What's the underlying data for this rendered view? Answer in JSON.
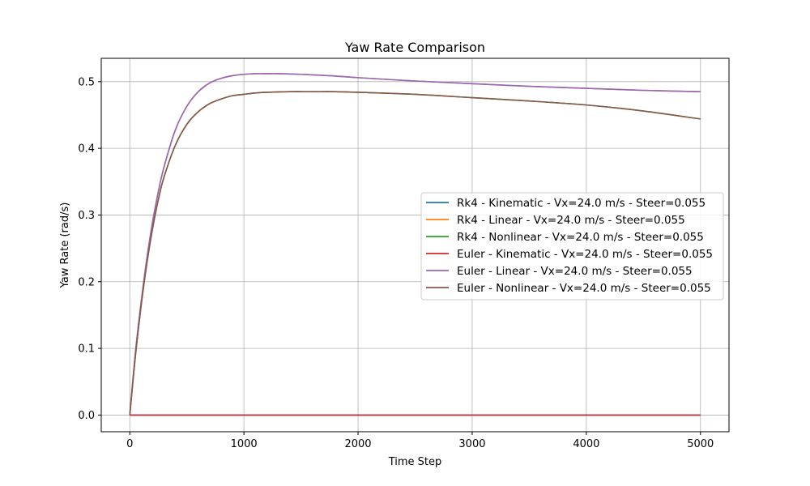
{
  "chart_data": {
    "type": "line",
    "title": "Yaw Rate Comparison",
    "xlabel": "Time Step",
    "ylabel": "Yaw Rate (rad/s)",
    "xlim": [
      -250,
      5250
    ],
    "ylim": [
      -0.025,
      0.535
    ],
    "xticks": [
      0,
      1000,
      2000,
      3000,
      4000,
      5000
    ],
    "yticks": [
      0.0,
      0.1,
      0.2,
      0.3,
      0.4,
      0.5
    ],
    "xtick_labels": [
      "0",
      "1000",
      "2000",
      "3000",
      "4000",
      "5000"
    ],
    "ytick_labels": [
      "0.0",
      "0.1",
      "0.2",
      "0.3",
      "0.4",
      "0.5"
    ],
    "grid": true,
    "legend_position": "center-right",
    "series": [
      {
        "name": "Rk4 - Kinematic - Vx=24.0 m/s - Steer=0.055",
        "color": "#1f77b4",
        "x": [
          0,
          5000
        ],
        "y": [
          0.0,
          0.0
        ]
      },
      {
        "name": "Rk4 - Linear - Vx=24.0 m/s - Steer=0.055",
        "color": "#ff7f0e",
        "x": [
          0,
          50,
          100,
          150,
          200,
          250,
          300,
          400,
          500,
          600,
          700,
          800,
          900,
          1000,
          1100,
          1200,
          1300,
          1500,
          1750,
          2000,
          2500,
          3000,
          3500,
          4000,
          4500,
          5000
        ],
        "y": [
          0.0,
          0.095,
          0.17,
          0.235,
          0.29,
          0.335,
          0.372,
          0.428,
          0.463,
          0.485,
          0.498,
          0.505,
          0.509,
          0.511,
          0.512,
          0.512,
          0.512,
          0.511,
          0.509,
          0.506,
          0.501,
          0.497,
          0.493,
          0.49,
          0.487,
          0.485
        ]
      },
      {
        "name": "Rk4 - Nonlinear - Vx=24.0 m/s - Steer=0.055",
        "color": "#2ca02c",
        "x": [
          0,
          50,
          100,
          150,
          200,
          250,
          300,
          400,
          500,
          600,
          700,
          800,
          900,
          1000,
          1100,
          1200,
          1400,
          1600,
          1800,
          2000,
          2500,
          3000,
          3500,
          4000,
          4500,
          5000
        ],
        "y": [
          0.0,
          0.09,
          0.165,
          0.228,
          0.28,
          0.323,
          0.357,
          0.405,
          0.436,
          0.455,
          0.467,
          0.474,
          0.479,
          0.481,
          0.483,
          0.484,
          0.485,
          0.485,
          0.485,
          0.484,
          0.481,
          0.476,
          0.471,
          0.465,
          0.456,
          0.444
        ]
      },
      {
        "name": "Euler - Kinematic - Vx=24.0 m/s - Steer=0.055",
        "color": "#d62728",
        "x": [
          0,
          5000
        ],
        "y": [
          0.0,
          0.0
        ]
      },
      {
        "name": "Euler - Linear - Vx=24.0 m/s - Steer=0.055",
        "color": "#9467bd",
        "x": [
          0,
          50,
          100,
          150,
          200,
          250,
          300,
          400,
          500,
          600,
          700,
          800,
          900,
          1000,
          1100,
          1200,
          1300,
          1500,
          1750,
          2000,
          2500,
          3000,
          3500,
          4000,
          4500,
          5000
        ],
        "y": [
          0.0,
          0.095,
          0.17,
          0.235,
          0.29,
          0.335,
          0.372,
          0.428,
          0.463,
          0.485,
          0.498,
          0.505,
          0.509,
          0.511,
          0.512,
          0.512,
          0.512,
          0.511,
          0.509,
          0.506,
          0.501,
          0.497,
          0.493,
          0.49,
          0.487,
          0.485
        ]
      },
      {
        "name": "Euler - Nonlinear - Vx=24.0 m/s - Steer=0.055",
        "color": "#8c564b",
        "x": [
          0,
          50,
          100,
          150,
          200,
          250,
          300,
          400,
          500,
          600,
          700,
          800,
          900,
          1000,
          1100,
          1200,
          1400,
          1600,
          1800,
          2000,
          2500,
          3000,
          3500,
          4000,
          4500,
          5000
        ],
        "y": [
          0.0,
          0.09,
          0.165,
          0.228,
          0.28,
          0.323,
          0.357,
          0.405,
          0.436,
          0.455,
          0.467,
          0.474,
          0.479,
          0.481,
          0.483,
          0.484,
          0.485,
          0.485,
          0.485,
          0.484,
          0.481,
          0.476,
          0.471,
          0.465,
          0.456,
          0.444
        ]
      }
    ]
  }
}
